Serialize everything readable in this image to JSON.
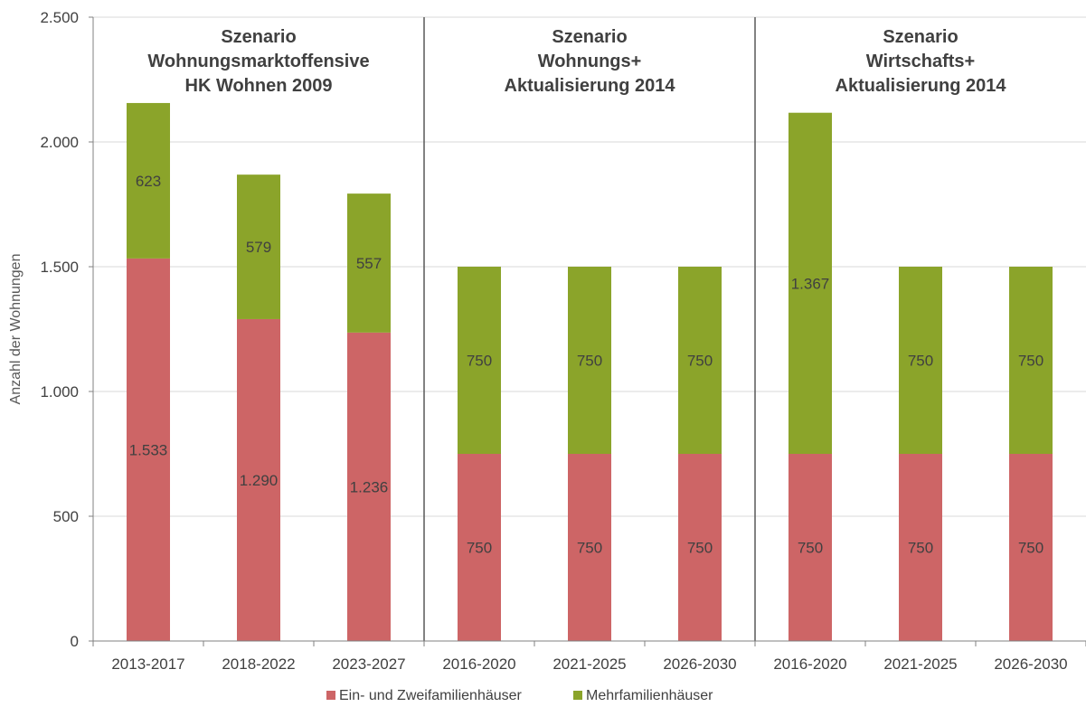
{
  "chart_data": {
    "type": "bar",
    "stacked": true,
    "ylabel": "Anzahl der Wohnungen",
    "xlabel": "",
    "ylim": [
      0,
      2500
    ],
    "yticks": [
      0,
      500,
      1000,
      1500,
      2000,
      2500
    ],
    "ytick_labels": [
      "0",
      "500",
      "1.000",
      "1.500",
      "2.000",
      "2.500"
    ],
    "grid": true,
    "categories": [
      "2013-2017",
      "2018-2022",
      "2023-2027",
      "2016-2020",
      "2021-2025",
      "2026-2030",
      "2016-2020",
      "2021-2025",
      "2026-2030"
    ],
    "series": [
      {
        "name": "Ein- und Zweifamilienhäuser",
        "color": "#cd6566",
        "values": [
          1533,
          1290,
          1236,
          750,
          750,
          750,
          750,
          750,
          750
        ],
        "labels": [
          "1.533",
          "1.290",
          "1.236",
          "750",
          "750",
          "750",
          "750",
          "750",
          "750"
        ]
      },
      {
        "name": "Mehrfamilienhäuser",
        "color": "#8ba42a",
        "values": [
          623,
          579,
          557,
          750,
          750,
          750,
          1367,
          750,
          750
        ],
        "labels": [
          "623",
          "579",
          "557",
          "750",
          "750",
          "750",
          "1.367",
          "750",
          "750"
        ]
      }
    ],
    "groups": [
      {
        "title_lines": [
          "Szenario",
          "Wohnungsmarktoffensive",
          "HK Wohnen 2009"
        ],
        "size": 3
      },
      {
        "title_lines": [
          "Szenario",
          "Wohnungs+",
          "Aktualisierung 2014"
        ],
        "size": 3
      },
      {
        "title_lines": [
          "Szenario",
          "Wirtschafts+",
          "Aktualisierung 2014"
        ],
        "size": 3
      }
    ],
    "legend_position": "bottom-center"
  },
  "colors": {
    "grid": "#d9d9d9",
    "axis": "#808080",
    "separator": "#595959",
    "text": "#404040"
  }
}
